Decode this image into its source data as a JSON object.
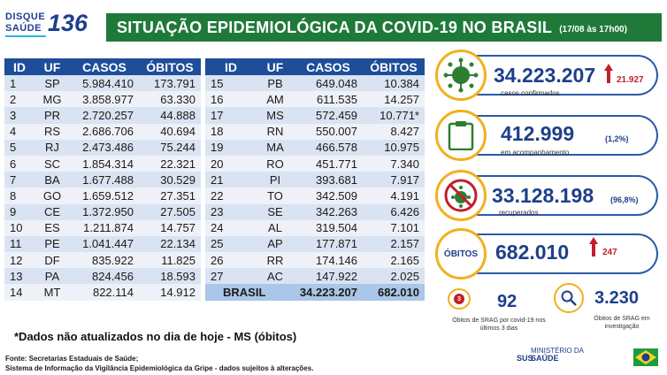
{
  "header": {
    "logo_line1": "DISQUE",
    "logo_line2": "SAÚDE",
    "logo_number": "136",
    "title": "SITUAÇÃO EPIDEMIOLÓGICA DA COVID-19 NO BRASIL",
    "date": "(17/08 às 17h00)"
  },
  "table_headers": {
    "id": "ID",
    "uf": "UF",
    "casos": "CASOS",
    "obitos": "ÓBITOS"
  },
  "table_left": [
    {
      "id": "1",
      "uf": "SP",
      "casos": "5.984.410",
      "obitos": "173.791"
    },
    {
      "id": "2",
      "uf": "MG",
      "casos": "3.858.977",
      "obitos": "63.330"
    },
    {
      "id": "3",
      "uf": "PR",
      "casos": "2.720.257",
      "obitos": "44.888"
    },
    {
      "id": "4",
      "uf": "RS",
      "casos": "2.686.706",
      "obitos": "40.694"
    },
    {
      "id": "5",
      "uf": "RJ",
      "casos": "2.473.486",
      "obitos": "75.244"
    },
    {
      "id": "6",
      "uf": "SC",
      "casos": "1.854.314",
      "obitos": "22.321"
    },
    {
      "id": "7",
      "uf": "BA",
      "casos": "1.677.488",
      "obitos": "30.529"
    },
    {
      "id": "8",
      "uf": "GO",
      "casos": "1.659.512",
      "obitos": "27.351"
    },
    {
      "id": "9",
      "uf": "CE",
      "casos": "1.372.950",
      "obitos": "27.505"
    },
    {
      "id": "10",
      "uf": "ES",
      "casos": "1.211.874",
      "obitos": "14.757"
    },
    {
      "id": "11",
      "uf": "PE",
      "casos": "1.041.447",
      "obitos": "22.134"
    },
    {
      "id": "12",
      "uf": "DF",
      "casos": "835.922",
      "obitos": "11.825"
    },
    {
      "id": "13",
      "uf": "PA",
      "casos": "824.456",
      "obitos": "18.593"
    },
    {
      "id": "14",
      "uf": "MT",
      "casos": "822.114",
      "obitos": "14.912"
    }
  ],
  "table_right": [
    {
      "id": "15",
      "uf": "PB",
      "casos": "649.048",
      "obitos": "10.384"
    },
    {
      "id": "16",
      "uf": "AM",
      "casos": "611.535",
      "obitos": "14.257"
    },
    {
      "id": "17",
      "uf": "MS",
      "casos": "572.459",
      "obitos": "10.771*"
    },
    {
      "id": "18",
      "uf": "RN",
      "casos": "550.007",
      "obitos": "8.427"
    },
    {
      "id": "19",
      "uf": "MA",
      "casos": "466.578",
      "obitos": "10.975"
    },
    {
      "id": "20",
      "uf": "RO",
      "casos": "451.771",
      "obitos": "7.340"
    },
    {
      "id": "21",
      "uf": "PI",
      "casos": "393.681",
      "obitos": "7.917"
    },
    {
      "id": "22",
      "uf": "TO",
      "casos": "342.509",
      "obitos": "4.191"
    },
    {
      "id": "23",
      "uf": "SE",
      "casos": "342.263",
      "obitos": "6.426"
    },
    {
      "id": "24",
      "uf": "AL",
      "casos": "319.504",
      "obitos": "7.101"
    },
    {
      "id": "25",
      "uf": "AP",
      "casos": "177.871",
      "obitos": "2.157"
    },
    {
      "id": "26",
      "uf": "RR",
      "casos": "174.146",
      "obitos": "2.165"
    },
    {
      "id": "27",
      "uf": "AC",
      "casos": "147.922",
      "obitos": "2.025"
    }
  ],
  "total": {
    "label": "BRASIL",
    "casos": "34.223.207",
    "obitos": "682.010"
  },
  "note": "*Dados não atualizados no dia de hoje - MS (óbitos)",
  "source_line1": "Fonte: Secretarias Estaduais de Saúde;",
  "source_line2": "Sistema de Informação da Vigilância Epidemiológica da Gripe - dados sujeitos à alterações.",
  "stats": {
    "confirmed": {
      "value": "34.223.207",
      "delta": "21.927",
      "label": "casos confirmados"
    },
    "monitoring": {
      "value": "412.999",
      "pct": "(1,2%)",
      "label": "em acompanhamento"
    },
    "recovered": {
      "value": "33.128.198",
      "pct": "(96,8%)",
      "label": "recuperados"
    },
    "deaths": {
      "icon_label": "ÓBITOS",
      "value": "682.010",
      "delta": "247"
    },
    "srag_deaths": {
      "value": "92",
      "label": "Óbitos de SRAG por covid-19 nos últimos 3 dias",
      "badge": "3"
    },
    "srag_investigation": {
      "value": "3.230",
      "label": "Óbitos de SRAG em investigação"
    }
  },
  "footer": {
    "sus": "SUS",
    "ministry_line1": "MINISTÉRIO DA",
    "ministry_line2": "SAÚDE"
  },
  "colors": {
    "primary": "#1e4d9a",
    "title_green": "#1f7a3a",
    "accent": "#f2b01e",
    "alert": "#c0202a"
  }
}
